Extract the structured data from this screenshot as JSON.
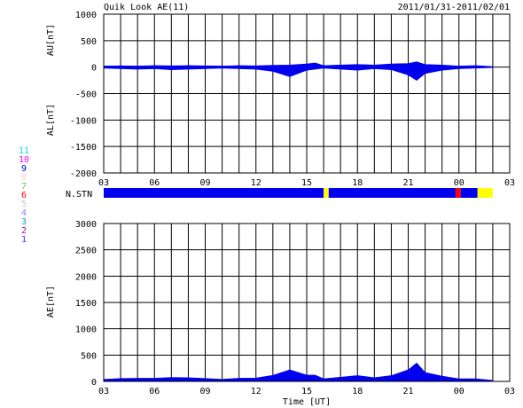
{
  "header": {
    "title": "Quik Look AE(11)",
    "date_range": "2011/01/31-2011/02/01"
  },
  "station_legend": [
    "11",
    "10",
    "9",
    "8",
    "7",
    "6",
    "5",
    "4",
    "3",
    "2",
    "1"
  ],
  "station_legend_colors": [
    "#00e0e0",
    "#ff00ff",
    "#0000cc",
    "#ffd0d0",
    "#66cc66",
    "#ff0000",
    "#c8c8c8",
    "#8888ff",
    "#00aaaa",
    "#aa00aa",
    "#3333ff"
  ],
  "chart_data": [
    {
      "type": "area",
      "name": "AU/AL panel",
      "ylabel_top": "AU[nT]",
      "ylabel_bottom": "AL[nT]",
      "ylim": [
        -2000,
        1000
      ],
      "yticks": [
        "1000",
        "500",
        "0",
        "-500",
        "-1000",
        "-1500",
        "-2000"
      ],
      "xticks": [
        "03",
        "06",
        "09",
        "12",
        "15",
        "18",
        "21",
        "00",
        "03"
      ],
      "x_hours": [
        3,
        4,
        5,
        6,
        7,
        8,
        9,
        10,
        11,
        12,
        13,
        14,
        14.5,
        15,
        15.5,
        16,
        17,
        18,
        19,
        20,
        21,
        21.5,
        22,
        23,
        24,
        25,
        26
      ],
      "au": [
        20,
        25,
        20,
        30,
        25,
        30,
        25,
        20,
        30,
        25,
        35,
        40,
        50,
        60,
        80,
        30,
        40,
        50,
        40,
        60,
        70,
        100,
        50,
        40,
        20,
        30,
        10
      ],
      "al": [
        -20,
        -30,
        -40,
        -30,
        -50,
        -40,
        -30,
        -20,
        -30,
        -40,
        -80,
        -180,
        -120,
        -60,
        -40,
        -20,
        -40,
        -60,
        -30,
        -50,
        -150,
        -250,
        -120,
        -60,
        -30,
        -20,
        -10
      ],
      "grid": true
    },
    {
      "type": "heatmap",
      "name": "N.STN",
      "label": "N.STN",
      "segments": [
        {
          "start": 3,
          "end": 16.0,
          "color": "#0000ee"
        },
        {
          "start": 16.0,
          "end": 16.3,
          "color": "#ffff00"
        },
        {
          "start": 16.3,
          "end": 23.8,
          "color": "#0000ee"
        },
        {
          "start": 23.8,
          "end": 24.1,
          "color": "#ff0000"
        },
        {
          "start": 24.1,
          "end": 25.1,
          "color": "#0000ee"
        },
        {
          "start": 25.1,
          "end": 26.0,
          "color": "#ffff00"
        }
      ]
    },
    {
      "type": "area",
      "name": "AE panel",
      "ylabel": "AE[nT]",
      "xlabel": "Time [UT]",
      "ylim": [
        0,
        3000
      ],
      "yticks": [
        "3000",
        "2500",
        "2000",
        "1500",
        "1000",
        "500",
        "0"
      ],
      "xticks": [
        "03",
        "06",
        "09",
        "12",
        "15",
        "18",
        "21",
        "00",
        "03"
      ],
      "x_hours": [
        3,
        4,
        5,
        6,
        7,
        8,
        9,
        10,
        11,
        12,
        13,
        14,
        14.5,
        15,
        15.5,
        16,
        17,
        18,
        19,
        20,
        21,
        21.5,
        22,
        23,
        24,
        25,
        26
      ],
      "values": [
        40,
        55,
        60,
        60,
        75,
        70,
        55,
        40,
        60,
        65,
        115,
        220,
        170,
        120,
        120,
        50,
        80,
        110,
        70,
        110,
        220,
        350,
        170,
        100,
        50,
        50,
        20
      ],
      "grid": true
    }
  ]
}
